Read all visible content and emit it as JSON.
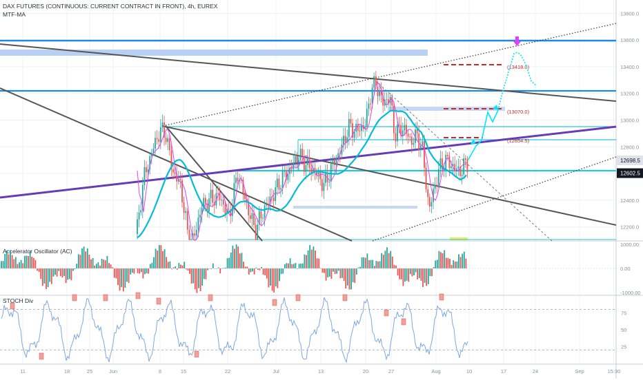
{
  "header": {
    "title": "DAX FUTURES (CONTINUOUS: CURRENT CONTRACT IN FRONT), 4h, EUREX",
    "indicator": "MTF-MA"
  },
  "colors": {
    "bull": "#26a69a",
    "bear": "#ef5350",
    "ma_fast": "#e040fb",
    "ma_slow": "#00bcd4",
    "blue_line": "#1e88e5",
    "purple_line": "#673ab7",
    "trend": "#555555",
    "cyan": "#26c6da",
    "forecast": "#00e5ff",
    "red_dash": "#c62828",
    "stoch": "#7ea6e0"
  },
  "chart_data": [
    {
      "type": "line",
      "pane": "price",
      "x_tick_labels": [
        "11",
        "18",
        "25",
        "Jun",
        "8",
        "15",
        "22",
        "Jul",
        "13",
        "20",
        "27",
        "Aug",
        "10",
        "17",
        "24",
        "Sep",
        "15:30"
      ],
      "y_tick_labels": [
        "13800.0",
        "13600.0",
        "13400.0",
        "13200.0",
        "13000.0",
        "12800.0",
        "12600.0",
        "12400.0",
        "12200.0"
      ],
      "ylim": [
        12100,
        13900
      ],
      "price_badges": [
        {
          "label": "12698.5",
          "value": 12698.5,
          "style": "light"
        },
        {
          "label": "12602.5",
          "value": 12602.5,
          "style": "dark"
        }
      ],
      "horizontal_levels": [
        13600,
        13200,
        12940,
        12830,
        12602
      ],
      "target_labels": [
        {
          "label": "(13418.0)",
          "value": 13418
        },
        {
          "label": "(13070.0)",
          "value": 13070
        },
        {
          "label": "(12854.5)",
          "value": 12854.5
        }
      ]
    },
    {
      "type": "bar",
      "pane": "oscillator",
      "title": "Accelerator Oscillator (AC)",
      "y_tick_labels": [
        "1000.00",
        "0.00",
        "-1000.00"
      ],
      "ylim": [
        -1100,
        1100
      ]
    },
    {
      "type": "line",
      "pane": "stochastic",
      "title": "STOCH Div",
      "y_tick_labels": [
        "75",
        "50",
        "25"
      ],
      "ylim": [
        0,
        100
      ],
      "bands": [
        80,
        20
      ]
    }
  ]
}
